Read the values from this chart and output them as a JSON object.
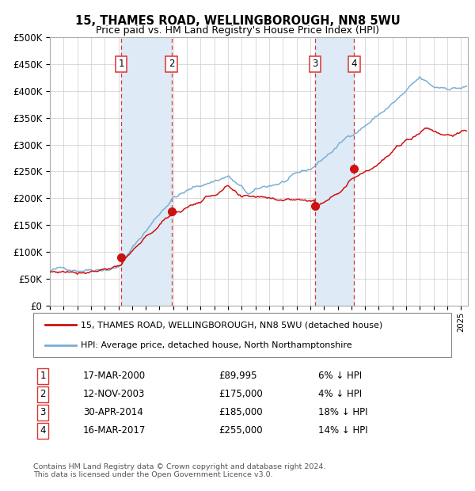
{
  "title1": "15, THAMES ROAD, WELLINGBOROUGH, NN8 5WU",
  "title2": "Price paid vs. HM Land Registry's House Price Index (HPI)",
  "legend_line1": "15, THAMES ROAD, WELLINGBOROUGH, NN8 5WU (detached house)",
  "legend_line2": "HPI: Average price, detached house, North Northamptonshire",
  "transactions": [
    {
      "num": 1,
      "date": "17-MAR-2000",
      "date_num": 2000.21,
      "price": 89995,
      "hpi_pct": "6% ↓ HPI"
    },
    {
      "num": 2,
      "date": "12-NOV-2003",
      "date_num": 2003.87,
      "price": 175000,
      "hpi_pct": "4% ↓ HPI"
    },
    {
      "num": 3,
      "date": "30-APR-2014",
      "date_num": 2014.33,
      "price": 185000,
      "hpi_pct": "18% ↓ HPI"
    },
    {
      "num": 4,
      "date": "16-MAR-2017",
      "date_num": 2017.21,
      "price": 255000,
      "hpi_pct": "14% ↓ HPI"
    }
  ],
  "hpi_color": "#7aafd4",
  "price_color": "#cc1111",
  "marker_color": "#cc1111",
  "bg_color": "#ffffff",
  "grid_color": "#cccccc",
  "shade_color": "#deeaf5",
  "dashed_color": "#dd3333",
  "xmin": 1995.0,
  "xmax": 2025.5,
  "ymin": 0,
  "ymax": 500000,
  "yticks": [
    0,
    50000,
    100000,
    150000,
    200000,
    250000,
    300000,
    350000,
    400000,
    450000,
    500000
  ],
  "footer": "Contains HM Land Registry data © Crown copyright and database right 2024.\nThis data is licensed under the Open Government Licence v3.0."
}
